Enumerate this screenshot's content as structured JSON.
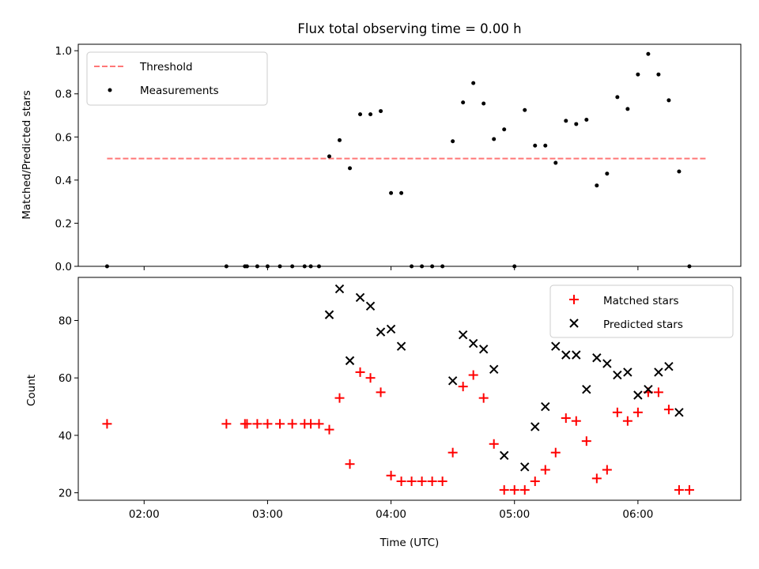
{
  "chart_data": [
    {
      "type": "scatter",
      "title": "Flux total observing time = 0.00 h",
      "xlabel": "",
      "ylabel": "Matched/Predicted stars",
      "xlim": [
        "01:28",
        "06:50"
      ],
      "ylim": [
        0,
        1.03
      ],
      "yticks": [
        "0.0",
        "0.2",
        "0.4",
        "0.6",
        "0.8",
        "1.0"
      ],
      "grid": false,
      "legend_position": "top-left",
      "threshold": {
        "name": "Threshold",
        "y": 0.5,
        "x_range": [
          "01:42",
          "06:34"
        ],
        "color": "#ff7777",
        "style": "dashed"
      },
      "series": [
        {
          "name": "Measurements",
          "color": "#000000",
          "marker": "dot",
          "points": [
            [
              "01:42",
              0.0
            ],
            [
              "02:40",
              0.0
            ],
            [
              "02:49",
              0.0
            ],
            [
              "02:50",
              0.0
            ],
            [
              "02:55",
              0.0
            ],
            [
              "03:00",
              0.0
            ],
            [
              "03:06",
              0.0
            ],
            [
              "03:12",
              0.0
            ],
            [
              "03:18",
              0.0
            ],
            [
              "03:21",
              0.0
            ],
            [
              "03:25",
              0.0
            ],
            [
              "03:30",
              0.51
            ],
            [
              "03:35",
              0.585
            ],
            [
              "03:40",
              0.455
            ],
            [
              "03:45",
              0.705
            ],
            [
              "03:50",
              0.705
            ],
            [
              "03:55",
              0.72
            ],
            [
              "04:00",
              0.34
            ],
            [
              "04:05",
              0.34
            ],
            [
              "04:10",
              0.0
            ],
            [
              "04:15",
              0.0
            ],
            [
              "04:20",
              0.0
            ],
            [
              "04:25",
              0.0
            ],
            [
              "04:30",
              0.58
            ],
            [
              "04:35",
              0.76
            ],
            [
              "04:40",
              0.85
            ],
            [
              "04:45",
              0.755
            ],
            [
              "04:50",
              0.59
            ],
            [
              "04:55",
              0.635
            ],
            [
              "05:00",
              0.0
            ],
            [
              "05:05",
              0.725
            ],
            [
              "05:10",
              0.56
            ],
            [
              "05:15",
              0.56
            ],
            [
              "05:20",
              0.48
            ],
            [
              "05:25",
              0.675
            ],
            [
              "05:30",
              0.66
            ],
            [
              "05:35",
              0.68
            ],
            [
              "05:40",
              0.375
            ],
            [
              "05:45",
              0.43
            ],
            [
              "05:50",
              0.785
            ],
            [
              "05:55",
              0.73
            ],
            [
              "06:00",
              0.89
            ],
            [
              "06:05",
              0.985
            ],
            [
              "06:10",
              0.89
            ],
            [
              "06:15",
              0.77
            ],
            [
              "06:20",
              0.44
            ],
            [
              "06:25",
              0.0
            ]
          ]
        }
      ]
    },
    {
      "type": "scatter",
      "title": "",
      "xlabel": "Time (UTC)",
      "ylabel": "Count",
      "xlim": [
        "01:28",
        "06:50"
      ],
      "ylim": [
        17.4,
        95
      ],
      "yticks": [
        "20",
        "40",
        "60",
        "80"
      ],
      "xticks": [
        "02:00",
        "03:00",
        "04:00",
        "05:00",
        "06:00"
      ],
      "grid": false,
      "legend_position": "top-right",
      "series": [
        {
          "name": "Matched stars",
          "color": "#ff0000",
          "marker": "plus",
          "points": [
            [
              "01:42",
              44
            ],
            [
              "02:40",
              44
            ],
            [
              "02:49",
              44
            ],
            [
              "02:50",
              44
            ],
            [
              "02:55",
              44
            ],
            [
              "03:00",
              44
            ],
            [
              "03:06",
              44
            ],
            [
              "03:12",
              44
            ],
            [
              "03:18",
              44
            ],
            [
              "03:21",
              44
            ],
            [
              "03:25",
              44
            ],
            [
              "03:30",
              42
            ],
            [
              "03:35",
              53
            ],
            [
              "03:40",
              30
            ],
            [
              "03:45",
              62
            ],
            [
              "03:50",
              60
            ],
            [
              "03:55",
              55
            ],
            [
              "04:00",
              26
            ],
            [
              "04:05",
              24
            ],
            [
              "04:10",
              24
            ],
            [
              "04:15",
              24
            ],
            [
              "04:20",
              24
            ],
            [
              "04:25",
              24
            ],
            [
              "04:30",
              34
            ],
            [
              "04:35",
              57
            ],
            [
              "04:40",
              61
            ],
            [
              "04:45",
              53
            ],
            [
              "04:50",
              37
            ],
            [
              "04:55",
              21
            ],
            [
              "05:00",
              21
            ],
            [
              "05:05",
              21
            ],
            [
              "05:10",
              24
            ],
            [
              "05:15",
              28
            ],
            [
              "05:20",
              34
            ],
            [
              "05:25",
              46
            ],
            [
              "05:30",
              45
            ],
            [
              "05:35",
              38
            ],
            [
              "05:40",
              25
            ],
            [
              "05:45",
              28
            ],
            [
              "05:50",
              48
            ],
            [
              "05:55",
              45
            ],
            [
              "06:00",
              48
            ],
            [
              "06:05",
              55
            ],
            [
              "06:10",
              55
            ],
            [
              "06:15",
              49
            ],
            [
              "06:20",
              21
            ],
            [
              "06:25",
              21
            ]
          ]
        },
        {
          "name": "Predicted stars",
          "color": "#000000",
          "marker": "x",
          "points": [
            [
              "03:30",
              82
            ],
            [
              "03:35",
              91
            ],
            [
              "03:40",
              66
            ],
            [
              "03:45",
              88
            ],
            [
              "03:50",
              85
            ],
            [
              "03:55",
              76
            ],
            [
              "04:00",
              77
            ],
            [
              "04:05",
              71
            ],
            [
              "04:30",
              59
            ],
            [
              "04:35",
              75
            ],
            [
              "04:40",
              72
            ],
            [
              "04:45",
              70
            ],
            [
              "04:50",
              63
            ],
            [
              "04:55",
              33
            ],
            [
              "05:05",
              29
            ],
            [
              "05:10",
              43
            ],
            [
              "05:15",
              50
            ],
            [
              "05:20",
              71
            ],
            [
              "05:25",
              68
            ],
            [
              "05:30",
              68
            ],
            [
              "05:35",
              56
            ],
            [
              "05:40",
              67
            ],
            [
              "05:45",
              65
            ],
            [
              "05:50",
              61
            ],
            [
              "05:55",
              62
            ],
            [
              "06:00",
              54
            ],
            [
              "06:05",
              56
            ],
            [
              "06:10",
              62
            ],
            [
              "06:15",
              64
            ],
            [
              "06:20",
              48
            ]
          ]
        }
      ]
    }
  ]
}
